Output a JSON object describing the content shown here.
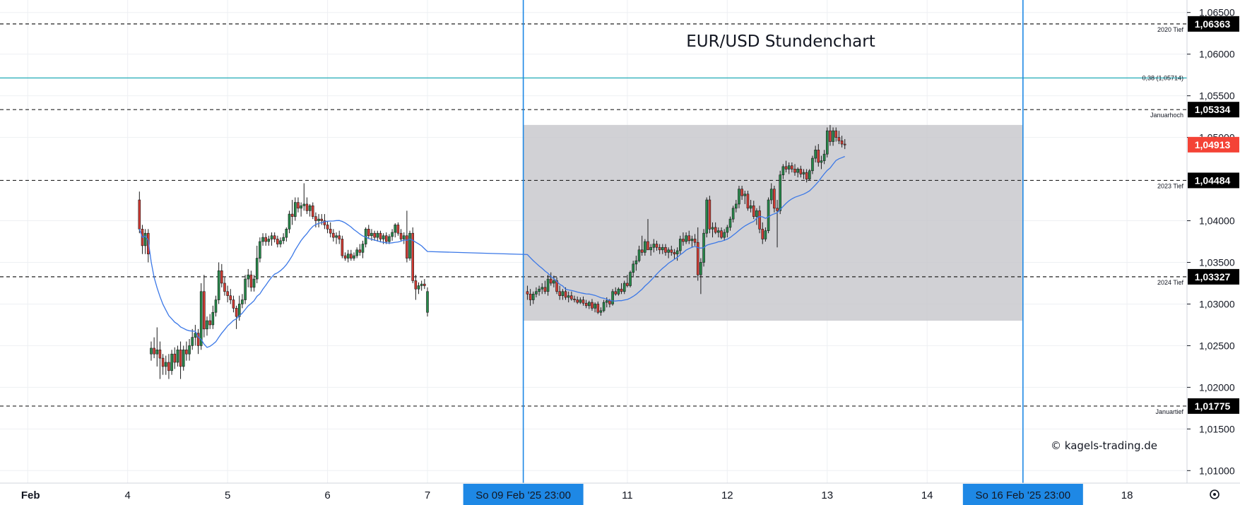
{
  "chart_data": {
    "type": "candlestick",
    "title": "EUR/USD Stundenchart",
    "watermark": "© kagels-trading.de",
    "current_price_label": "1,04913",
    "colors": {
      "up": "#26894a",
      "down": "#d43b33",
      "ma": "#3b78e7",
      "zone": "#c6c5cb",
      "vline": "#1e88e5",
      "fib": "#3fb6c0",
      "price_tag": "#f44336",
      "level_tag": "#000000",
      "grid": "#eef0f3"
    },
    "ylim": [
      1.0085,
      1.0665
    ],
    "y_ticks": [
      "1,06500",
      "1,06000",
      "1,05500",
      "1,05000",
      "1,04000",
      "1,03500",
      "1,03000",
      "1,02500",
      "1,02000",
      "1,01500",
      "1,01000"
    ],
    "y_tick_values": [
      1.065,
      1.06,
      1.055,
      1.05,
      1.04,
      1.035,
      1.03,
      1.025,
      1.02,
      1.015,
      1.01
    ],
    "x_ticks": [
      {
        "label": "Feb",
        "slot": -68,
        "bold": true
      },
      {
        "label": "4",
        "slot": -51
      },
      {
        "label": "5",
        "slot": -34
      },
      {
        "label": "6",
        "slot": -17
      },
      {
        "label": "7",
        "slot": 0
      },
      {
        "label": "11",
        "slot": 34
      },
      {
        "label": "12",
        "slot": 51
      },
      {
        "label": "13",
        "slot": 68
      },
      {
        "label": "14",
        "slot": 85
      },
      {
        "label": "18",
        "slot": 119
      }
    ],
    "x_markers": [
      {
        "label": "So 09 Feb '25   23:00",
        "slot": 16.3
      },
      {
        "label": "So 16 Feb '25   23:00",
        "slot": 101.3
      }
    ],
    "horizontal_levels": [
      {
        "value": 1.06363,
        "label": "1,06363",
        "note": "2020 Tief"
      },
      {
        "value": 1.05334,
        "label": "1,05334",
        "note": "Januarhoch"
      },
      {
        "value": 1.04484,
        "label": "1,04484",
        "note": "2023 Tief"
      },
      {
        "value": 1.03327,
        "label": "1,03327",
        "note": "2024 Tief"
      },
      {
        "value": 1.01775,
        "label": "1,01775",
        "note": "Januartief"
      }
    ],
    "fib_level": {
      "value": 1.05714,
      "label": "0,38 (1,05714)"
    },
    "range_box": {
      "low": 1.028,
      "high": 1.0515
    },
    "current_price": 1.04913,
    "candles": [
      [
        1.0425,
        1.0435,
        1.0385,
        1.039
      ],
      [
        1.039,
        1.0395,
        1.036,
        1.037
      ],
      [
        1.037,
        1.039,
        1.036,
        1.0385
      ],
      [
        1.0385,
        1.039,
        1.035,
        1.036
      ],
      [
        1.024,
        1.0255,
        1.0232,
        1.0247
      ],
      [
        1.0247,
        1.026,
        1.0235,
        1.024
      ],
      [
        1.024,
        1.0272,
        1.0225,
        1.0245
      ],
      [
        1.0245,
        1.0255,
        1.021,
        1.0235
      ],
      [
        1.0235,
        1.024,
        1.0215,
        1.0225
      ],
      [
        1.0225,
        1.0238,
        1.0215,
        1.023
      ],
      [
        1.023,
        1.024,
        1.021,
        1.022
      ],
      [
        1.022,
        1.0245,
        1.0215,
        1.024
      ],
      [
        1.024,
        1.0248,
        1.0222,
        1.023
      ],
      [
        1.023,
        1.025,
        1.0225,
        1.0245
      ],
      [
        1.0245,
        1.0255,
        1.021,
        1.0225
      ],
      [
        1.0225,
        1.025,
        1.022,
        1.0245
      ],
      [
        1.0245,
        1.0255,
        1.0232,
        1.024
      ],
      [
        1.024,
        1.0258,
        1.0232,
        1.025
      ],
      [
        1.025,
        1.027,
        1.0245,
        1.026
      ],
      [
        1.026,
        1.0275,
        1.025,
        1.0265
      ],
      [
        1.0265,
        1.027,
        1.024,
        1.025
      ],
      [
        1.025,
        1.0325,
        1.0245,
        1.0315
      ],
      [
        1.0315,
        1.0335,
        1.026,
        1.027
      ],
      [
        1.027,
        1.0285,
        1.0262,
        1.028
      ],
      [
        1.028,
        1.0288,
        1.027,
        1.0275
      ],
      [
        1.0275,
        1.0298,
        1.027,
        1.029
      ],
      [
        1.029,
        1.031,
        1.0285,
        1.0305
      ],
      [
        1.0305,
        1.035,
        1.03,
        1.034
      ],
      [
        1.034,
        1.0348,
        1.032,
        1.0325
      ],
      [
        1.0325,
        1.0332,
        1.031,
        1.0315
      ],
      [
        1.0315,
        1.0322,
        1.0302,
        1.031
      ],
      [
        1.031,
        1.0318,
        1.03,
        1.0305
      ],
      [
        1.0305,
        1.031,
        1.029,
        1.0295
      ],
      [
        1.0295,
        1.0298,
        1.027,
        1.0285
      ],
      [
        1.0285,
        1.031,
        1.028,
        1.03
      ],
      [
        1.03,
        1.0312,
        1.0295,
        1.0305
      ],
      [
        1.0305,
        1.0335,
        1.03,
        1.033
      ],
      [
        1.033,
        1.0342,
        1.032,
        1.0335
      ],
      [
        1.0335,
        1.034,
        1.0315,
        1.032
      ],
      [
        1.032,
        1.0335,
        1.0315,
        1.033
      ],
      [
        1.033,
        1.037,
        1.0325,
        1.0355
      ],
      [
        1.0355,
        1.038,
        1.035,
        1.0375
      ],
      [
        1.0375,
        1.0385,
        1.037,
        1.038
      ],
      [
        1.038,
        1.0385,
        1.037,
        1.0375
      ],
      [
        1.0375,
        1.0382,
        1.037,
        1.0378
      ],
      [
        1.0378,
        1.0386,
        1.037,
        1.0382
      ],
      [
        1.0382,
        1.0386,
        1.0374,
        1.0378
      ],
      [
        1.0378,
        1.0382,
        1.0368,
        1.0372
      ],
      [
        1.0372,
        1.038,
        1.0368,
        1.0376
      ],
      [
        1.0376,
        1.0385,
        1.0372,
        1.038
      ],
      [
        1.038,
        1.0392,
        1.0375,
        1.039
      ],
      [
        1.039,
        1.0412,
        1.0385,
        1.0408
      ],
      [
        1.0408,
        1.0425,
        1.0395,
        1.0405
      ],
      [
        1.0405,
        1.0428,
        1.04,
        1.0422
      ],
      [
        1.0422,
        1.0428,
        1.041,
        1.0415
      ],
      [
        1.0415,
        1.0422,
        1.0405,
        1.0418
      ],
      [
        1.0418,
        1.0445,
        1.0412,
        1.042
      ],
      [
        1.042,
        1.0428,
        1.0408,
        1.0412
      ],
      [
        1.0412,
        1.042,
        1.0405,
        1.0418
      ],
      [
        1.0418,
        1.0422,
        1.0402,
        1.0405
      ],
      [
        1.0405,
        1.041,
        1.0392,
        1.04
      ],
      [
        1.04,
        1.0408,
        1.0392,
        1.0402
      ],
      [
        1.0402,
        1.0408,
        1.0395,
        1.04
      ],
      [
        1.04,
        1.0408,
        1.039,
        1.0395
      ],
      [
        1.0395,
        1.04,
        1.0385,
        1.039
      ],
      [
        1.039,
        1.0398,
        1.038,
        1.0385
      ],
      [
        1.0385,
        1.039,
        1.0375,
        1.038
      ],
      [
        1.038,
        1.0386,
        1.0372,
        1.0382
      ],
      [
        1.0382,
        1.0388,
        1.0372,
        1.0378
      ],
      [
        1.0378,
        1.0382,
        1.0355,
        1.0358
      ],
      [
        1.0358,
        1.0362,
        1.0352,
        1.0355
      ],
      [
        1.0355,
        1.0365,
        1.035,
        1.036
      ],
      [
        1.036,
        1.0365,
        1.0352,
        1.0355
      ],
      [
        1.0355,
        1.0362,
        1.0352,
        1.0358
      ],
      [
        1.0358,
        1.0368,
        1.0355,
        1.0365
      ],
      [
        1.0365,
        1.0372,
        1.0358,
        1.0362
      ],
      [
        1.0362,
        1.0376,
        1.0355,
        1.0372
      ],
      [
        1.0372,
        1.0392,
        1.0368,
        1.039
      ],
      [
        1.039,
        1.0395,
        1.0378,
        1.0382
      ],
      [
        1.0382,
        1.039,
        1.0376,
        1.0385
      ],
      [
        1.0385,
        1.0388,
        1.0376,
        1.038
      ],
      [
        1.038,
        1.0388,
        1.0375,
        1.0385
      ],
      [
        1.0385,
        1.0388,
        1.0374,
        1.0378
      ],
      [
        1.0378,
        1.0385,
        1.0372,
        1.0382
      ],
      [
        1.0382,
        1.0386,
        1.0372,
        1.0375
      ],
      [
        1.0375,
        1.0384,
        1.0372,
        1.0381
      ],
      [
        1.0381,
        1.039,
        1.0376,
        1.0386
      ],
      [
        1.0386,
        1.0397,
        1.038,
        1.0395
      ],
      [
        1.0395,
        1.0398,
        1.0382,
        1.0385
      ],
      [
        1.0385,
        1.039,
        1.0375,
        1.0378
      ],
      [
        1.0378,
        1.0386,
        1.0372,
        1.0382
      ],
      [
        1.0382,
        1.0412,
        1.035,
        1.0355
      ],
      [
        1.0355,
        1.0388,
        1.0352,
        1.0385
      ],
      [
        1.0385,
        1.0392,
        1.0325,
        1.0328
      ],
      [
        1.0328,
        1.0335,
        1.0305,
        1.0318
      ],
      [
        1.0318,
        1.0326,
        1.0312,
        1.0322
      ],
      [
        1.0322,
        1.0328,
        1.0316,
        1.0324
      ],
      [
        1.0324,
        1.033,
        1.0318,
        1.0322
      ],
      [
        1.029,
        1.032,
        1.0285,
        1.0315
      ],
      [
        1.0315,
        1.0322,
        1.0305,
        1.0312
      ],
      [
        1.0312,
        1.0318,
        1.0298,
        1.0305
      ],
      [
        1.0305,
        1.0315,
        1.03,
        1.0312
      ],
      [
        1.0312,
        1.032,
        1.0308,
        1.0315
      ],
      [
        1.0315,
        1.0322,
        1.031,
        1.0318
      ],
      [
        1.0318,
        1.0325,
        1.0312,
        1.032
      ],
      [
        1.032,
        1.0328,
        1.0312,
        1.0315
      ],
      [
        1.0315,
        1.0335,
        1.031,
        1.033
      ],
      [
        1.033,
        1.0338,
        1.0322,
        1.0325
      ],
      [
        1.0325,
        1.0334,
        1.032,
        1.0328
      ],
      [
        1.0328,
        1.0332,
        1.0312,
        1.0315
      ],
      [
        1.0315,
        1.0322,
        1.0305,
        1.031
      ],
      [
        1.031,
        1.0318,
        1.0305,
        1.0315
      ],
      [
        1.0315,
        1.032,
        1.0305,
        1.0308
      ],
      [
        1.0308,
        1.0315,
        1.0302,
        1.031
      ],
      [
        1.031,
        1.0315,
        1.0304,
        1.0306
      ],
      [
        1.0306,
        1.031,
        1.0302,
        1.0305
      ],
      [
        1.0305,
        1.0309,
        1.03,
        1.0302
      ],
      [
        1.0302,
        1.0308,
        1.03,
        1.0305
      ],
      [
        1.0305,
        1.0309,
        1.0298,
        1.0301
      ],
      [
        1.0301,
        1.0305,
        1.0295,
        1.0298
      ],
      [
        1.0298,
        1.0304,
        1.0294,
        1.0302
      ],
      [
        1.0302,
        1.0306,
        1.0292,
        1.0295
      ],
      [
        1.0295,
        1.0302,
        1.029,
        1.03
      ],
      [
        1.03,
        1.0303,
        1.0288,
        1.029
      ],
      [
        1.029,
        1.0296,
        1.0286,
        1.0292
      ],
      [
        1.0292,
        1.0305,
        1.029,
        1.0302
      ],
      [
        1.0302,
        1.0308,
        1.0296,
        1.0304
      ],
      [
        1.0304,
        1.0306,
        1.0296,
        1.03
      ],
      [
        1.03,
        1.0318,
        1.0298,
        1.0315
      ],
      [
        1.0315,
        1.032,
        1.031,
        1.0312
      ],
      [
        1.0312,
        1.032,
        1.031,
        1.0318
      ],
      [
        1.0318,
        1.0325,
        1.0312,
        1.0315
      ],
      [
        1.0315,
        1.0328,
        1.0312,
        1.0325
      ],
      [
        1.0325,
        1.0335,
        1.032,
        1.0322
      ],
      [
        1.0322,
        1.034,
        1.032,
        1.0338
      ],
      [
        1.0338,
        1.0352,
        1.0332,
        1.0348
      ],
      [
        1.0348,
        1.0358,
        1.034,
        1.0352
      ],
      [
        1.0352,
        1.037,
        1.035,
        1.0365
      ],
      [
        1.0365,
        1.0382,
        1.0358,
        1.0362
      ],
      [
        1.0362,
        1.0378,
        1.0358,
        1.0375
      ],
      [
        1.0375,
        1.0402,
        1.037,
        1.0365
      ],
      [
        1.0365,
        1.0372,
        1.0358,
        1.0368
      ],
      [
        1.0368,
        1.0378,
        1.0362,
        1.0372
      ],
      [
        1.0372,
        1.0376,
        1.0364,
        1.0368
      ],
      [
        1.0368,
        1.0372,
        1.036,
        1.0365
      ],
      [
        1.0365,
        1.0372,
        1.036,
        1.0368
      ],
      [
        1.0368,
        1.0372,
        1.0358,
        1.0362
      ],
      [
        1.0362,
        1.0368,
        1.0355,
        1.0365
      ],
      [
        1.0365,
        1.037,
        1.0358,
        1.0362
      ],
      [
        1.0362,
        1.0366,
        1.0354,
        1.036
      ],
      [
        1.036,
        1.0368,
        1.0352,
        1.0364
      ],
      [
        1.0364,
        1.0382,
        1.036,
        1.0378
      ],
      [
        1.0378,
        1.0386,
        1.037,
        1.0375
      ],
      [
        1.0375,
        1.0386,
        1.0372,
        1.0382
      ],
      [
        1.0382,
        1.0388,
        1.0372,
        1.0376
      ],
      [
        1.0376,
        1.0382,
        1.0368,
        1.0378
      ],
      [
        1.0378,
        1.0384,
        1.037,
        1.0374
      ],
      [
        1.0374,
        1.0392,
        1.0328,
        1.0335
      ],
      [
        1.0335,
        1.0355,
        1.0312,
        1.035
      ],
      [
        1.035,
        1.039,
        1.0345,
        1.0385
      ],
      [
        1.0385,
        1.0428,
        1.038,
        1.0425
      ],
      [
        1.0425,
        1.043,
        1.0385,
        1.039
      ],
      [
        1.039,
        1.0398,
        1.038,
        1.0392
      ],
      [
        1.0392,
        1.0398,
        1.0384,
        1.0386
      ],
      [
        1.0386,
        1.0392,
        1.038,
        1.0388
      ],
      [
        1.0388,
        1.0392,
        1.0378,
        1.038
      ],
      [
        1.038,
        1.039,
        1.0376,
        1.0386
      ],
      [
        1.0386,
        1.0395,
        1.038,
        1.0392
      ],
      [
        1.0392,
        1.0405,
        1.0388,
        1.0402
      ],
      [
        1.0402,
        1.0418,
        1.0398,
        1.0415
      ],
      [
        1.0415,
        1.0425,
        1.041,
        1.042
      ],
      [
        1.042,
        1.0442,
        1.0415,
        1.0438
      ],
      [
        1.0438,
        1.0442,
        1.0425,
        1.043
      ],
      [
        1.043,
        1.0436,
        1.042,
        1.0432
      ],
      [
        1.0432,
        1.0436,
        1.0412,
        1.0415
      ],
      [
        1.0415,
        1.0425,
        1.041,
        1.0418
      ],
      [
        1.0418,
        1.0424,
        1.0402,
        1.0405
      ],
      [
        1.0405,
        1.0415,
        1.0395,
        1.0412
      ],
      [
        1.0412,
        1.0418,
        1.0385,
        1.039
      ],
      [
        1.039,
        1.0398,
        1.0372,
        1.0378
      ],
      [
        1.0378,
        1.0392,
        1.0375,
        1.0388
      ],
      [
        1.0388,
        1.0428,
        1.0385,
        1.0425
      ],
      [
        1.0425,
        1.0445,
        1.042,
        1.0438
      ],
      [
        1.0438,
        1.0442,
        1.041,
        1.0415
      ],
      [
        1.0415,
        1.0425,
        1.0368,
        1.0412
      ],
      [
        1.0412,
        1.046,
        1.0408,
        1.0455
      ],
      [
        1.0455,
        1.0468,
        1.045,
        1.0465
      ],
      [
        1.0465,
        1.0472,
        1.0458,
        1.0462
      ],
      [
        1.0462,
        1.047,
        1.0456,
        1.0466
      ],
      [
        1.0466,
        1.047,
        1.0458,
        1.0462
      ],
      [
        1.0462,
        1.0468,
        1.0454,
        1.0458
      ],
      [
        1.0458,
        1.0464,
        1.0452,
        1.0462
      ],
      [
        1.0462,
        1.0466,
        1.0452,
        1.0456
      ],
      [
        1.0456,
        1.0462,
        1.045,
        1.0458
      ],
      [
        1.0458,
        1.0462,
        1.0446,
        1.045
      ],
      [
        1.045,
        1.0462,
        1.0448,
        1.046
      ],
      [
        1.046,
        1.0478,
        1.0456,
        1.0475
      ],
      [
        1.0475,
        1.049,
        1.047,
        1.0485
      ],
      [
        1.0485,
        1.0492,
        1.0465,
        1.047
      ],
      [
        1.047,
        1.0478,
        1.0462,
        1.0472
      ],
      [
        1.0472,
        1.0485,
        1.0468,
        1.048
      ],
      [
        1.048,
        1.0512,
        1.0476,
        1.0508
      ],
      [
        1.0508,
        1.0515,
        1.049,
        1.0495
      ],
      [
        1.0495,
        1.0512,
        1.049,
        1.0508
      ],
      [
        1.0508,
        1.0512,
        1.0495,
        1.05
      ],
      [
        1.05,
        1.0508,
        1.0492,
        1.0496
      ],
      [
        1.0496,
        1.0502,
        1.0488,
        1.0492
      ],
      [
        1.0492,
        1.0498,
        1.0486,
        1.0491
      ]
    ]
  }
}
